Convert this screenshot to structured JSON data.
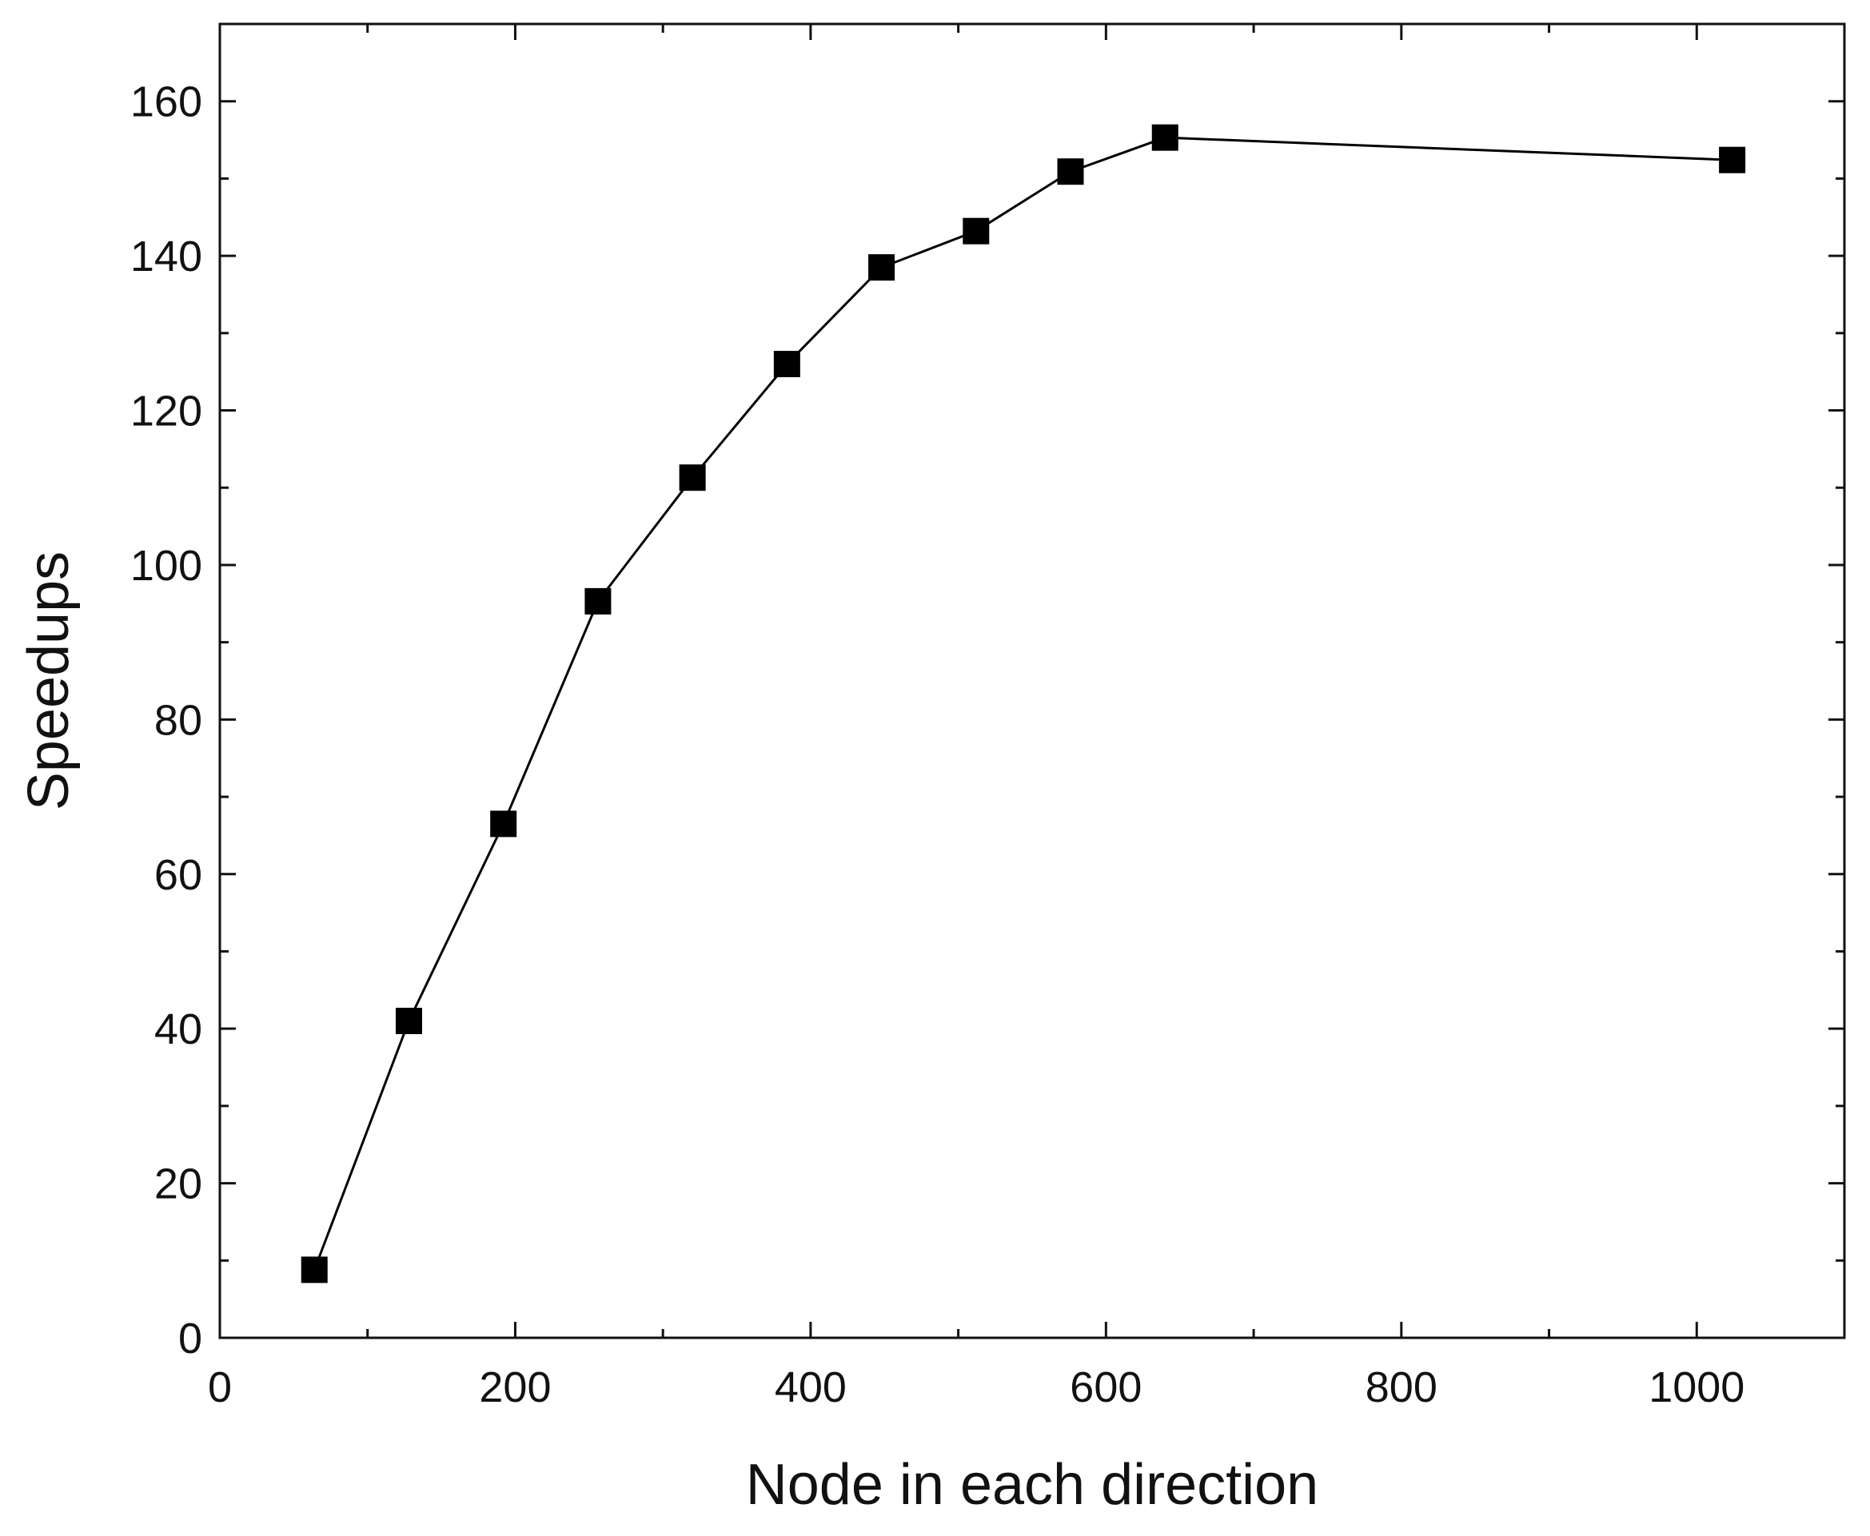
{
  "chart_data": {
    "type": "line",
    "x_label": "Node in each direction",
    "y_label": "Speedups",
    "x": [
      64,
      128,
      192,
      256,
      320,
      384,
      448,
      512,
      576,
      640,
      1024
    ],
    "series": [
      {
        "color": "#000000",
        "values": [
          8.8,
          41,
          66.5,
          95.3,
          111.3,
          126,
          138.5,
          143.2,
          150.9,
          155.3,
          152.4
        ]
      }
    ],
    "xlim": [
      0,
      1100
    ],
    "xticks": [
      0,
      200,
      400,
      600,
      800,
      1000
    ],
    "ylim": [
      0,
      170
    ],
    "yticks": [
      0,
      20,
      40,
      60,
      80,
      100,
      120,
      140,
      160
    ],
    "grid": false
  }
}
